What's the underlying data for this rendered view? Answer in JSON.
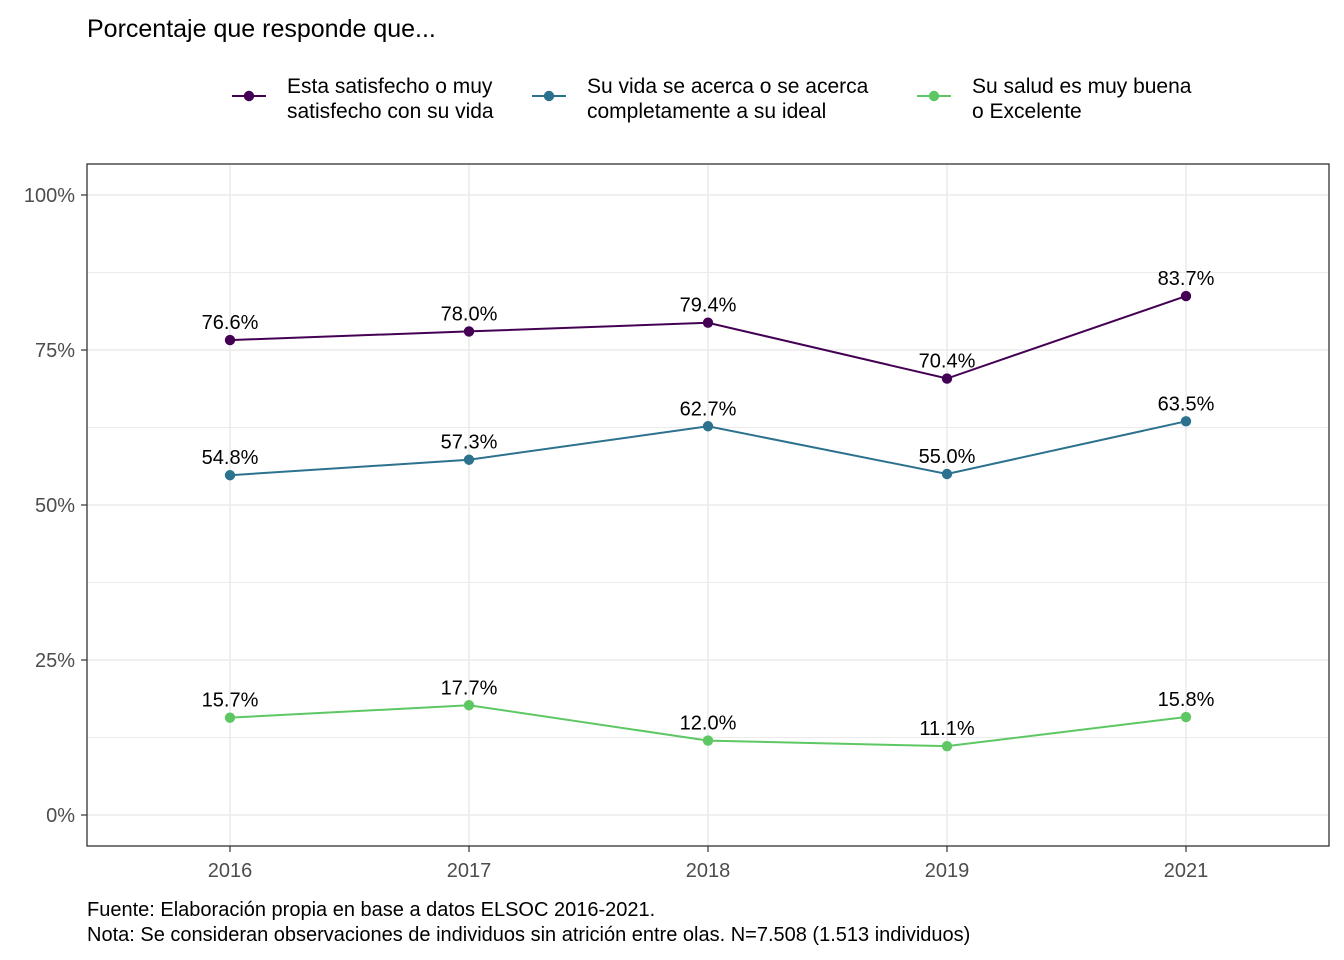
{
  "title": "Porcentaje que responde que...",
  "caption_lines": [
    "Fuente: Elaboración propia en base a datos ELSOC 2016-2021.",
    "Nota: Se consideran observaciones de individuos sin atrición entre olas. N=7.508 (1.513 individuos)"
  ],
  "chart_data": {
    "type": "line",
    "title": "Porcentaje que responde que...",
    "xlabel": "",
    "ylabel": "",
    "x": [
      "2016",
      "2017",
      "2018",
      "2019",
      "2021"
    ],
    "ylim": [
      -0.05,
      1.05
    ],
    "y_ticks": [
      0,
      0.25,
      0.5,
      0.75,
      1.0
    ],
    "y_tick_labels": [
      "0%",
      "25%",
      "50%",
      "75%",
      "100%"
    ],
    "grid": true,
    "legend_position": "top",
    "series": [
      {
        "name": "Esta satisfecho o muy satisfecho con su vida",
        "legend_lines": [
          "Esta satisfecho o muy",
          "satisfecho con su vida"
        ],
        "color": "#440154",
        "values": [
          0.766,
          0.78,
          0.794,
          0.704,
          0.837
        ],
        "labels": [
          "76.6%",
          "78.0%",
          "79.4%",
          "70.4%",
          "83.7%"
        ]
      },
      {
        "name": "Su vida se acerca o se acerca completamente a su ideal",
        "legend_lines": [
          "Su vida se acerca o se acerca",
          "completamente a su ideal"
        ],
        "color": "#2C728E",
        "values": [
          0.548,
          0.573,
          0.627,
          0.55,
          0.635
        ],
        "labels": [
          "54.8%",
          "57.3%",
          "62.7%",
          "55.0%",
          "63.5%"
        ]
      },
      {
        "name": "Su salud es muy buena o Excelente",
        "legend_lines": [
          "Su salud es muy buena",
          "o Excelente"
        ],
        "color": "#5DC863",
        "values": [
          0.157,
          0.177,
          0.12,
          0.111,
          0.158
        ],
        "labels": [
          "15.7%",
          "17.7%",
          "12.0%",
          "11.1%",
          "15.8%"
        ]
      }
    ]
  }
}
